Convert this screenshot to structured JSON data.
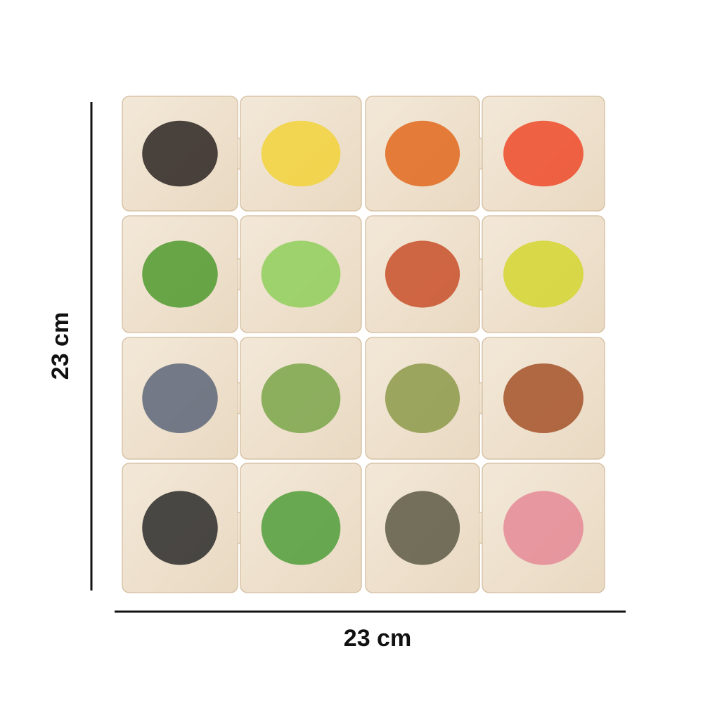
{
  "dimensions": {
    "height": "23 cm",
    "width": "23 cm"
  }
}
